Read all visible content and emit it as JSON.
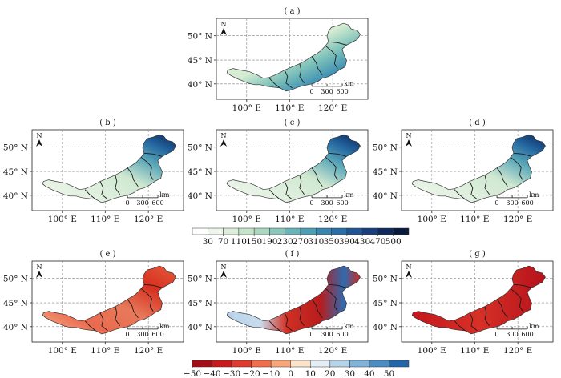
{
  "panels": [
    {
      "id": "a",
      "label": "( a )",
      "type": "abs",
      "north": "N",
      "lon_ticks": [
        "100° E",
        "110° E",
        "120° E"
      ],
      "lat_ticks": [
        "50° N",
        "45° N",
        "40° N"
      ],
      "scale_unit": "km",
      "scale_ticks": [
        "0",
        "300",
        "600"
      ]
    },
    {
      "id": "b",
      "label": "( b )",
      "type": "abs",
      "north": "N",
      "lon_ticks": [
        "100° E",
        "110° E",
        "120° E"
      ],
      "lat_ticks": [
        "50° N",
        "45° N",
        "40° N"
      ],
      "scale_unit": "km",
      "scale_ticks": [
        "0",
        "300",
        "600"
      ]
    },
    {
      "id": "c",
      "label": "( c )",
      "type": "abs",
      "north": "N",
      "lon_ticks": [
        "100° E",
        "110° E",
        "120° E"
      ],
      "lat_ticks": [
        "50° N",
        "45° N",
        "40° N"
      ],
      "scale_unit": "km",
      "scale_ticks": [
        "0",
        "300",
        "600"
      ]
    },
    {
      "id": "d",
      "label": "( d )",
      "type": "abs",
      "north": "N",
      "lon_ticks": [
        "100° E",
        "110° E",
        "120° E"
      ],
      "lat_ticks": [
        "50° N",
        "45° N",
        "40° N"
      ],
      "scale_unit": "km",
      "scale_ticks": [
        "0",
        "300",
        "600"
      ]
    },
    {
      "id": "e",
      "label": "( e )",
      "type": "diff",
      "north": "N",
      "lon_ticks": [
        "100° E",
        "110° E",
        "120° E"
      ],
      "lat_ticks": [
        "50° N",
        "45° N",
        "40° N"
      ],
      "scale_unit": "km",
      "scale_ticks": [
        "0",
        "300",
        "600"
      ]
    },
    {
      "id": "f",
      "label": "( f )",
      "type": "diff",
      "north": "N",
      "lon_ticks": [
        "100° E",
        "110° E",
        "120° E"
      ],
      "lat_ticks": [
        "50° N",
        "45° N",
        "40° N"
      ],
      "scale_unit": "km",
      "scale_ticks": [
        "0",
        "300",
        "600"
      ]
    },
    {
      "id": "g",
      "label": "( g )",
      "type": "diff",
      "north": "N",
      "lon_ticks": [
        "100° E",
        "110° E",
        "120° E"
      ],
      "lat_ticks": [
        "50° N",
        "45° N",
        "40° N"
      ],
      "scale_unit": "km",
      "scale_ticks": [
        "0",
        "300",
        "600"
      ]
    }
  ],
  "colorbar_abs": {
    "ticks": [
      "30",
      "70",
      "110",
      "150",
      "190",
      "230",
      "270",
      "310",
      "350",
      "390",
      "430",
      "470",
      "500"
    ],
    "colors": [
      "#ffffff",
      "#eef6ec",
      "#dcedd9",
      "#c6e4c8",
      "#a9d8bf",
      "#88c8bb",
      "#67b5b9",
      "#4b9fb6",
      "#3887b0",
      "#2a6ea7",
      "#1f5697",
      "#173f7f",
      "#0e2a5f",
      "#081a40"
    ]
  },
  "colorbar_diff": {
    "ticks": [
      "−50",
      "−40",
      "−30",
      "−20",
      "−10",
      "0",
      "10",
      "20",
      "30",
      "40",
      "50"
    ],
    "colors": [
      "#a50f15",
      "#cb181d",
      "#e03a2e",
      "#f16d4b",
      "#f9a77a",
      "#fde3c7",
      "#e3eef7",
      "#b5d4ea",
      "#7fb3d9",
      "#4a8cc6",
      "#2166ac"
    ]
  }
}
